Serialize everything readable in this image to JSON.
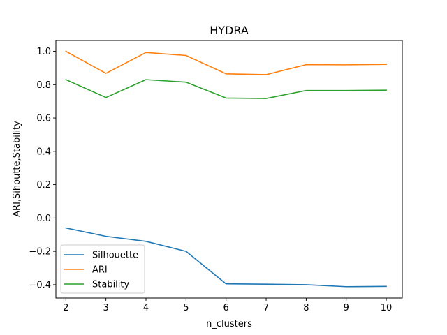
{
  "chart_data": {
    "type": "line",
    "title": "HYDRA",
    "xlabel": "n_clusters",
    "ylabel": "ARI,Sihoutte,Stability",
    "x": [
      2,
      3,
      4,
      5,
      6,
      7,
      8,
      9,
      10
    ],
    "xlim": [
      1.75,
      10.4
    ],
    "ylim": [
      -0.48,
      1.065
    ],
    "xticks": [
      "2",
      "3",
      "4",
      "5",
      "6",
      "7",
      "8",
      "9",
      "10"
    ],
    "yticks": [
      "−0.4",
      "−0.2",
      "0.0",
      "0.2",
      "0.4",
      "0.6",
      "0.8",
      "1.0"
    ],
    "grid": false,
    "legend_position": "lower-left",
    "series": [
      {
        "name": "Silhouette",
        "color": "#1f77b4",
        "values": [
          -0.06,
          -0.11,
          -0.14,
          -0.2,
          -0.395,
          -0.397,
          -0.4,
          -0.412,
          -0.41
        ]
      },
      {
        "name": "ARI",
        "color": "#ff7f0e",
        "values": [
          1.0,
          0.868,
          0.993,
          0.975,
          0.865,
          0.86,
          0.92,
          0.919,
          0.922
        ]
      },
      {
        "name": "Stability",
        "color": "#2ca02c",
        "values": [
          0.83,
          0.723,
          0.83,
          0.815,
          0.72,
          0.717,
          0.765,
          0.765,
          0.767
        ]
      }
    ]
  }
}
